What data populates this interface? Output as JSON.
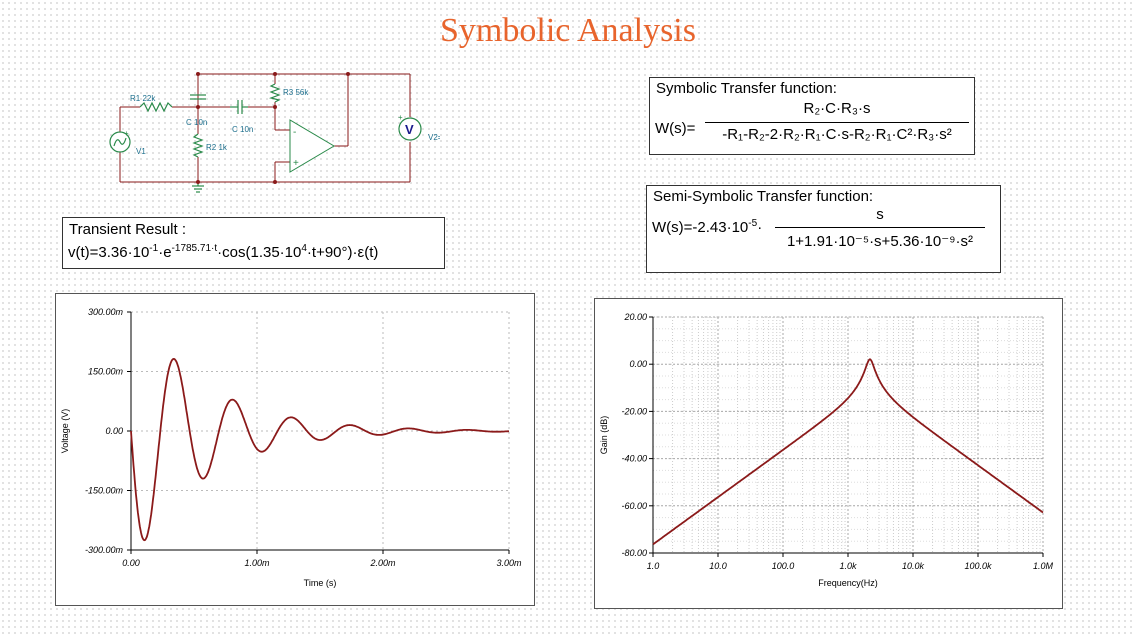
{
  "title": "Symbolic Analysis",
  "circuit": {
    "r1": "R1 22k",
    "r2": "R2 1k",
    "r3": "R3 56k",
    "c1": "C 10n",
    "c2": "C 10n",
    "v1": "V1",
    "meter_symbol": "V",
    "meter_label": "V2=?V",
    "plus": "+",
    "minus": "-",
    "opamp_plus": "+",
    "opamp_minus": "-"
  },
  "transient": {
    "label": "Transient Result :",
    "prefix": "v(t)=3.36·10",
    "exp1": "-1",
    "mid1": "·e",
    "exp2": "-1785.71·t",
    "mid2": "·cos(1.35·10",
    "exp3": "4",
    "suffix": "·t+90°)·ε(t)"
  },
  "symbolic": {
    "label": "Symbolic Transfer function:",
    "lhs": "W(s)=",
    "numerator": "R₂·C·R₃·s",
    "denominator": "-R₁-R₂-2·R₂·R₁·C·s-R₂·R₁·C²·R₃·s²"
  },
  "semi": {
    "label": "Semi-Symbolic Transfer function:",
    "lhs": "W(s)=-2.43·10",
    "lhs_exp": "-5",
    "lhs_dot": "·",
    "numerator": "s",
    "denominator": "1+1.91·10⁻⁵·s+5.36·10⁻⁹·s²"
  },
  "chart_data": [
    {
      "type": "line",
      "xlabel": "Time (s)",
      "ylabel": "Voltage (V)",
      "xlim": [
        0,
        0.003
      ],
      "ylim": [
        -0.3,
        0.3
      ],
      "xticks": [
        "0.00",
        "1.00m",
        "2.00m",
        "3.00m"
      ],
      "yticks": [
        "300.00m",
        "150.00m",
        "0.00",
        "-150.00m",
        "-300.00m"
      ],
      "grid": true,
      "series": [
        {
          "color": "#8b1a1a",
          "function": "v(t)=0.336·e^(-1785.71·t)·cos(1.35e4·t+90°)",
          "x": [
            0,
            0.0001,
            0.00035,
            0.0006,
            0.0008,
            0.00108,
            0.00132,
            0.00155,
            0.0018,
            0.002,
            0.0025,
            0.003
          ],
          "y": [
            0,
            -0.22,
            0.15,
            -0.1,
            0.06,
            -0.045,
            0.025,
            -0.02,
            0.012,
            -0.01,
            0.005,
            0
          ]
        }
      ]
    },
    {
      "type": "line",
      "xlabel": "Frequency(Hz)",
      "ylabel": "Gain (dB)",
      "xscale": "log",
      "xlim": [
        1,
        1000000
      ],
      "ylim": [
        -80,
        20
      ],
      "xticks": [
        "1.0",
        "10.0",
        "100.0",
        "1.0k",
        "10.0k",
        "100.0k",
        "1.0M"
      ],
      "yticks": [
        "20.00",
        "0.00",
        "-20.00",
        "-40.00",
        "-60.00",
        "-80.00"
      ],
      "grid": true,
      "series": [
        {
          "color": "#8b1a1a",
          "x": [
            1,
            10,
            100,
            1000,
            2170,
            10000,
            100000,
            1000000
          ],
          "y": [
            -75.9,
            -55.9,
            -36.2,
            -17.3,
            2.0,
            -22.2,
            -42.2,
            -63.2
          ]
        }
      ]
    }
  ]
}
